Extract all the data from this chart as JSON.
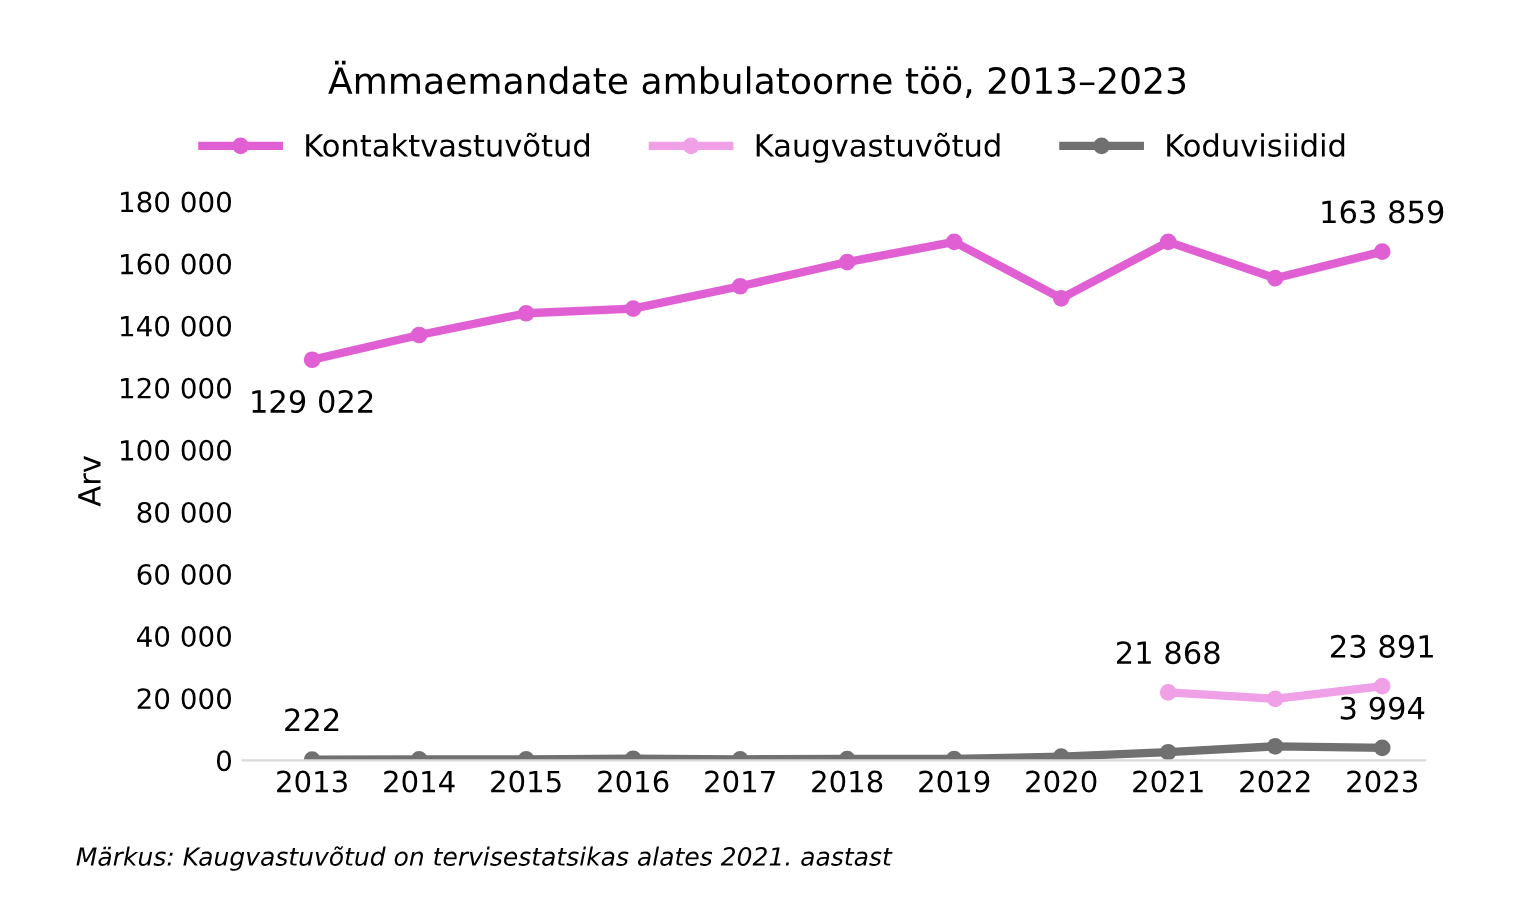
{
  "chart_data": {
    "type": "line",
    "title": "Ämmaemandate ambulatoorne töö, 2013–2023",
    "ylabel": "Arv",
    "categories": [
      "2013",
      "2014",
      "2015",
      "2016",
      "2017",
      "2018",
      "2019",
      "2020",
      "2021",
      "2022",
      "2023"
    ],
    "series": [
      {
        "name": "Kontaktvastuvõtud",
        "color": "#e060d4",
        "values": [
          129022,
          137000,
          144000,
          145500,
          152700,
          160500,
          167000,
          148800,
          167000,
          155300,
          163859
        ],
        "value_labels": [
          "129 022",
          null,
          null,
          null,
          null,
          null,
          null,
          null,
          null,
          null,
          "163 859"
        ]
      },
      {
        "name": "Kaugvastuvõtud",
        "color": "#f0a0e6",
        "values": [
          null,
          null,
          null,
          null,
          null,
          null,
          null,
          null,
          21868,
          19800,
          23891
        ],
        "value_labels": [
          null,
          null,
          null,
          null,
          null,
          null,
          null,
          null,
          "21 868",
          null,
          "23 891"
        ]
      },
      {
        "name": "Koduvisiidid",
        "color": "#707070",
        "values": [
          222,
          300,
          300,
          500,
          300,
          400,
          400,
          1200,
          2600,
          4500,
          3994
        ],
        "value_labels": [
          "222",
          null,
          null,
          null,
          null,
          null,
          null,
          null,
          null,
          null,
          "3 994"
        ]
      }
    ],
    "ylim": [
      0,
      180000
    ],
    "yticks": [
      {
        "value": 0,
        "label": "0"
      },
      {
        "value": 20000,
        "label": "20 000"
      },
      {
        "value": 40000,
        "label": "40 000"
      },
      {
        "value": 60000,
        "label": "60 000"
      },
      {
        "value": 80000,
        "label": "80 000"
      },
      {
        "value": 100000,
        "label": "100 000"
      },
      {
        "value": 120000,
        "label": "120 000"
      },
      {
        "value": 140000,
        "label": "140 000"
      },
      {
        "value": 160000,
        "label": "160 000"
      },
      {
        "value": 180000,
        "label": "180 000"
      }
    ],
    "grid": false,
    "legend": "top",
    "marker": "circle",
    "line_style": "solid",
    "annotations": [
      "Märkus: Kaugvastuvõtud on tervisestatsikas alates 2021. aastast"
    ]
  }
}
